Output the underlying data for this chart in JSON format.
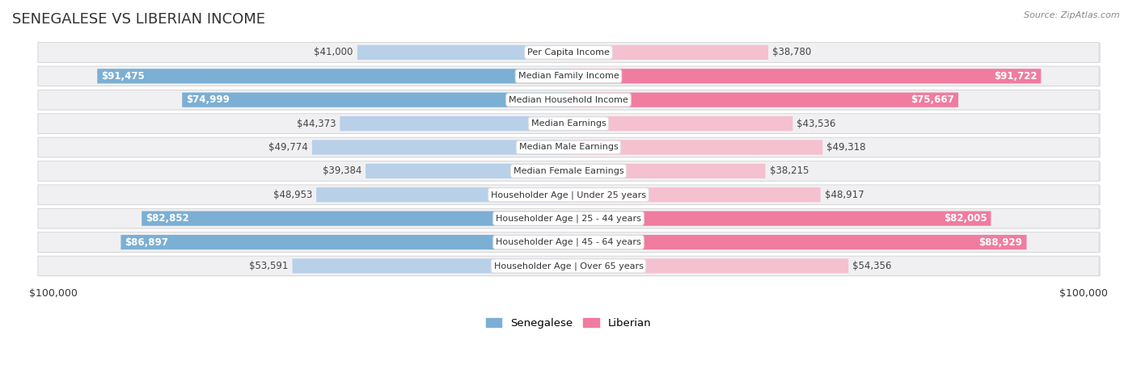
{
  "title": "SENEGALESE VS LIBERIAN INCOME",
  "source": "Source: ZipAtlas.com",
  "categories": [
    "Per Capita Income",
    "Median Family Income",
    "Median Household Income",
    "Median Earnings",
    "Median Male Earnings",
    "Median Female Earnings",
    "Householder Age | Under 25 years",
    "Householder Age | 25 - 44 years",
    "Householder Age | 45 - 64 years",
    "Householder Age | Over 65 years"
  ],
  "senegalese": [
    41000,
    91475,
    74999,
    44373,
    49774,
    39384,
    48953,
    82852,
    86897,
    53591
  ],
  "liberian": [
    38780,
    91722,
    75667,
    43536,
    49318,
    38215,
    48917,
    82005,
    88929,
    54356
  ],
  "senegalese_labels": [
    "$41,000",
    "$91,475",
    "$74,999",
    "$44,373",
    "$49,774",
    "$39,384",
    "$48,953",
    "$82,852",
    "$86,897",
    "$53,591"
  ],
  "liberian_labels": [
    "$38,780",
    "$91,722",
    "$75,667",
    "$43,536",
    "$49,318",
    "$38,215",
    "$48,917",
    "$82,005",
    "$88,929",
    "$54,356"
  ],
  "max_val": 100000,
  "senegalese_color": "#7bafd4",
  "liberian_color": "#f07ca0",
  "senegalese_color_light": "#b8d0e8",
  "liberian_color_light": "#f5c0cf",
  "row_bg": "#f0f0f3",
  "bar_height": 0.62,
  "threshold": 70000,
  "legend_senegalese": "Senegalese",
  "legend_liberian": "Liberian",
  "title_fontsize": 13,
  "label_fontsize": 8.5,
  "cat_fontsize": 8,
  "source_fontsize": 8
}
